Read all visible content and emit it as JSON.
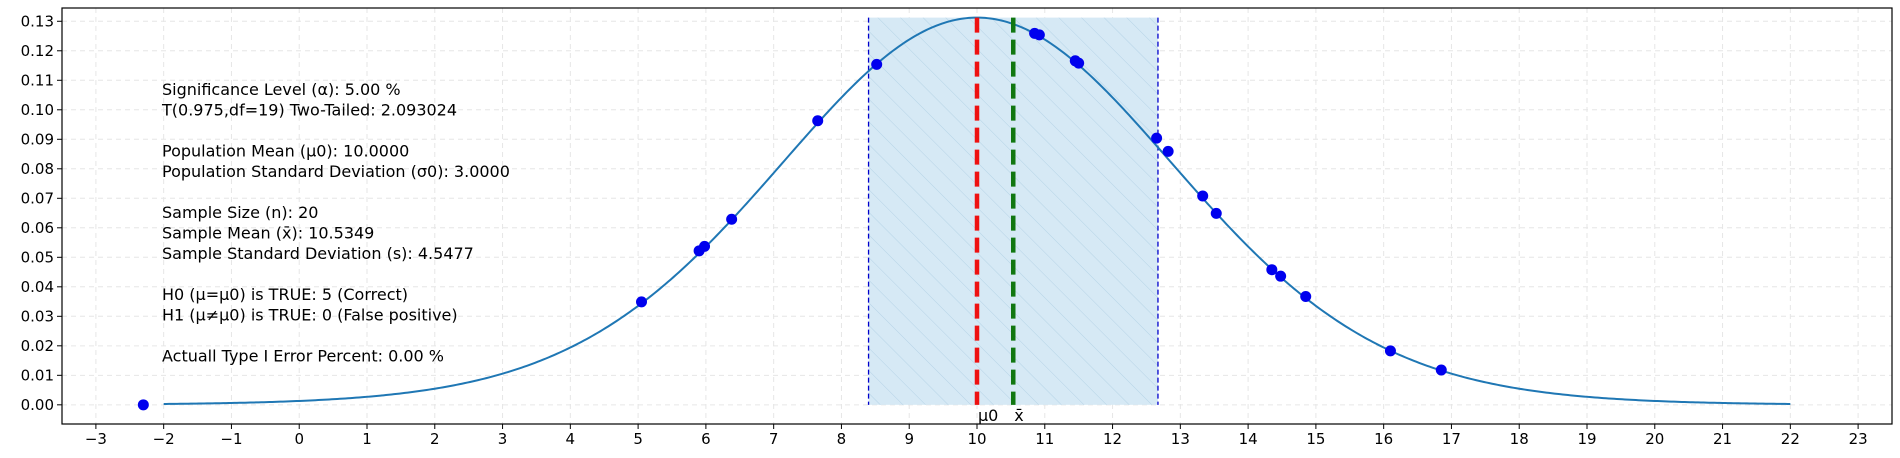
{
  "chart_data": {
    "type": "line",
    "xlim": [
      -3.5,
      23.5
    ],
    "ylim": [
      -0.0065,
      0.1345
    ],
    "xticks": [
      -3,
      -2,
      -1,
      0,
      1,
      2,
      3,
      4,
      5,
      6,
      7,
      8,
      9,
      10,
      11,
      12,
      13,
      14,
      15,
      16,
      17,
      18,
      19,
      20,
      21,
      22,
      23
    ],
    "xtick_labels": [
      "−3",
      "−2",
      "−1",
      "0",
      "1",
      "2",
      "3",
      "4",
      "5",
      "6",
      "7",
      "8",
      "9",
      "10",
      "11",
      "12",
      "13",
      "14",
      "15",
      "16",
      "17",
      "18",
      "19",
      "20",
      "21",
      "22",
      "23"
    ],
    "yticks": [
      0,
      0.01,
      0.02,
      0.03,
      0.04,
      0.05,
      0.06,
      0.07,
      0.08,
      0.09,
      0.1,
      0.11,
      0.12,
      0.13
    ],
    "ytick_labels": [
      "0.00",
      "0.01",
      "0.02",
      "0.03",
      "0.04",
      "0.05",
      "0.06",
      "0.07",
      "0.08",
      "0.09",
      "0.10",
      "0.11",
      "0.12",
      "0.13"
    ],
    "grid": true,
    "curve": {
      "type": "t-distribution",
      "mu": 10.0,
      "scale": 3.0,
      "df": 19,
      "x_range": [
        -2,
        22
      ],
      "color": "#1f77b4"
    },
    "acceptance_region": {
      "x": [
        8.4,
        12.67
      ],
      "fill": "#d6e9f5",
      "edge_color": "#0000cc"
    },
    "vlines": [
      {
        "x": 10.0,
        "label": "μ0",
        "color": "#ee1111"
      },
      {
        "x": 10.5349,
        "label": "x̄",
        "color": "#117711"
      }
    ],
    "points": [
      {
        "x": -2.3,
        "y": 0.0
      },
      {
        "x": 5.05,
        "y": 0.0349
      },
      {
        "x": 5.9,
        "y": 0.0522
      },
      {
        "x": 5.98,
        "y": 0.0537
      },
      {
        "x": 6.38,
        "y": 0.0629
      },
      {
        "x": 7.65,
        "y": 0.0963
      },
      {
        "x": 8.52,
        "y": 0.1154
      },
      {
        "x": 10.85,
        "y": 0.1259
      },
      {
        "x": 10.92,
        "y": 0.1254
      },
      {
        "x": 11.45,
        "y": 0.1166
      },
      {
        "x": 11.5,
        "y": 0.1158
      },
      {
        "x": 12.65,
        "y": 0.0904
      },
      {
        "x": 12.82,
        "y": 0.0859
      },
      {
        "x": 13.33,
        "y": 0.0708
      },
      {
        "x": 13.53,
        "y": 0.0649
      },
      {
        "x": 14.35,
        "y": 0.0458
      },
      {
        "x": 14.48,
        "y": 0.0436
      },
      {
        "x": 14.85,
        "y": 0.0367
      },
      {
        "x": 16.1,
        "y": 0.0183
      },
      {
        "x": 16.85,
        "y": 0.0118
      }
    ],
    "point_color": "#0000ee"
  },
  "info_lines": [
    "Significance Level (α): 5.00 %",
    "T(0.975,df=19) Two-Tailed: 2.093024",
    "",
    "Population Mean (μ0): 10.0000",
    "Population Standard Deviation (σ0): 3.0000",
    "",
    "Sample Size (n): 20",
    "Sample Mean (x̄): 10.5349",
    "Sample Standard Deviation (s): 4.5477",
    "",
    "H0 (μ=μ0) is TRUE: 5 (Correct)",
    "H1 (μ≠μ0) is TRUE: 0 (False positive)",
    "",
    "Actuall Type I Error Percent: 0.00 %"
  ]
}
